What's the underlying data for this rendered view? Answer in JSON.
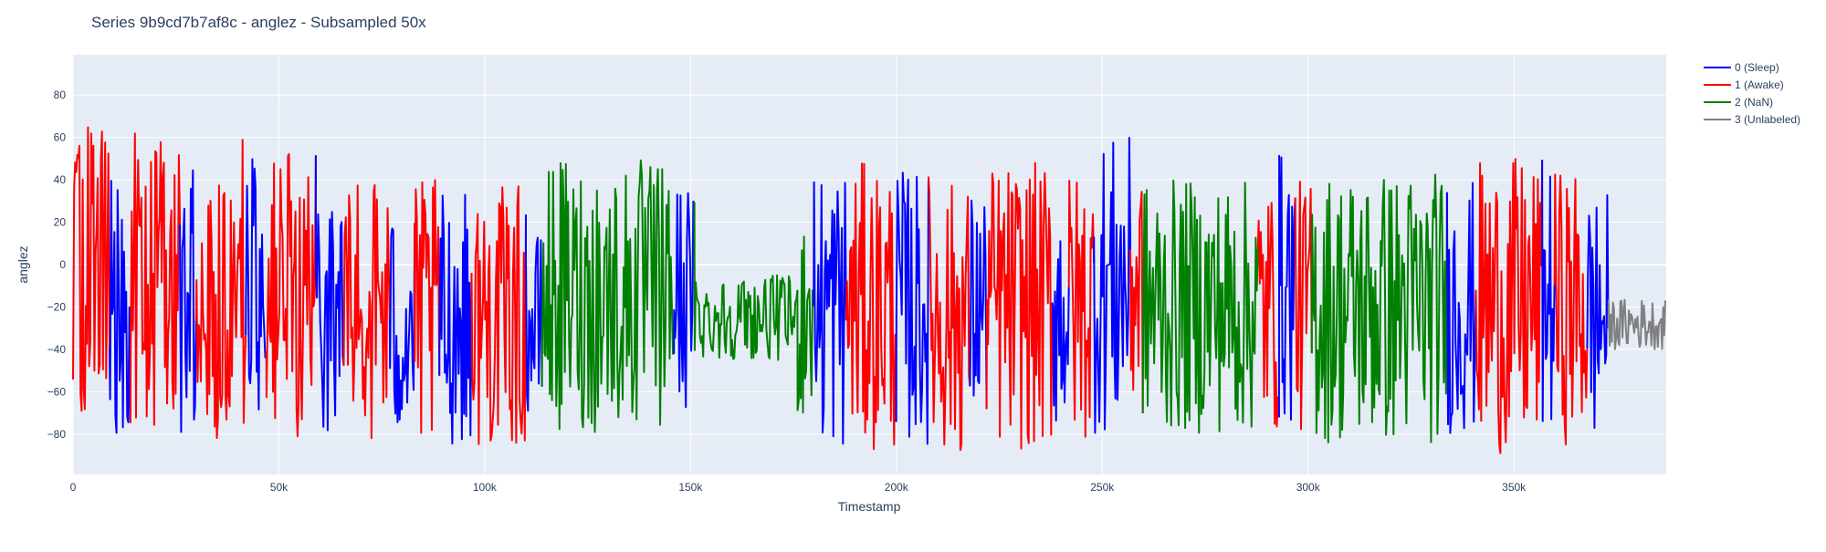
{
  "chart_data": {
    "type": "line",
    "title": "Series 9b9cd7b7af8c - anglez - Subsampled 50x",
    "xlabel": "Timestamp",
    "ylabel": "anglez",
    "xlim": [
      0,
      387000
    ],
    "ylim": [
      -99,
      99
    ],
    "x_ticks": [
      {
        "value": 0,
        "label": "0"
      },
      {
        "value": 50000,
        "label": "50k"
      },
      {
        "value": 100000,
        "label": "100k"
      },
      {
        "value": 150000,
        "label": "150k"
      },
      {
        "value": 200000,
        "label": "200k"
      },
      {
        "value": 250000,
        "label": "250k"
      },
      {
        "value": 300000,
        "label": "300k"
      },
      {
        "value": 350000,
        "label": "350k"
      }
    ],
    "y_ticks": [
      {
        "value": 80,
        "label": "80"
      },
      {
        "value": 60,
        "label": "60"
      },
      {
        "value": 40,
        "label": "40"
      },
      {
        "value": 20,
        "label": "20"
      },
      {
        "value": 0,
        "label": "0"
      },
      {
        "value": -20,
        "label": "−20"
      },
      {
        "value": -40,
        "label": "−40"
      },
      {
        "value": -60,
        "label": "−60"
      },
      {
        "value": -80,
        "label": "−80"
      }
    ],
    "grid": true,
    "legend_position": "top-right, outside plot",
    "series": [
      {
        "name": "0 (Sleep)",
        "color": "#0000ff"
      },
      {
        "name": "1 (Awake)",
        "color": "#ff0000"
      },
      {
        "name": "2 (NaN)",
        "color": "#008000"
      },
      {
        "name": "3 (Unlabeled)",
        "color": "#808080"
      }
    ],
    "segments": [
      {
        "series": 1,
        "x_start": 0,
        "x_end": 9000,
        "center": -5,
        "amplitude": 70
      },
      {
        "series": 0,
        "x_start": 9000,
        "x_end": 14000,
        "center": -15,
        "amplitude": 65
      },
      {
        "series": 1,
        "x_start": 14000,
        "x_end": 26000,
        "center": -10,
        "amplitude": 72
      },
      {
        "series": 0,
        "x_start": 26000,
        "x_end": 30000,
        "center": -12,
        "amplitude": 70
      },
      {
        "series": 1,
        "x_start": 30000,
        "x_end": 42000,
        "center": -12,
        "amplitude": 72
      },
      {
        "series": 0,
        "x_start": 42000,
        "x_end": 47000,
        "center": -10,
        "amplitude": 65
      },
      {
        "series": 1,
        "x_start": 47000,
        "x_end": 59000,
        "center": -15,
        "amplitude": 68
      },
      {
        "series": 0,
        "x_start": 59000,
        "x_end": 66000,
        "center": -20,
        "amplitude": 60
      },
      {
        "series": 1,
        "x_start": 66000,
        "x_end": 77000,
        "center": -20,
        "amplitude": 68
      },
      {
        "series": 0,
        "x_start": 77000,
        "x_end": 83000,
        "center": -30,
        "amplitude": 55
      },
      {
        "series": 1,
        "x_start": 83000,
        "x_end": 89000,
        "center": -25,
        "amplitude": 65
      },
      {
        "series": 0,
        "x_start": 89000,
        "x_end": 97000,
        "center": -25,
        "amplitude": 60
      },
      {
        "series": 1,
        "x_start": 97000,
        "x_end": 110000,
        "center": -25,
        "amplitude": 62
      },
      {
        "series": 0,
        "x_start": 110000,
        "x_end": 114000,
        "center": -30,
        "amplitude": 45
      },
      {
        "series": 2,
        "x_start": 114000,
        "x_end": 146000,
        "center": -15,
        "amplitude": 65
      },
      {
        "series": 0,
        "x_start": 146000,
        "x_end": 151000,
        "center": -15,
        "amplitude": 55
      },
      {
        "series": 2,
        "x_start": 151000,
        "x_end": 176000,
        "center": -25,
        "amplitude": 20
      },
      {
        "series": 2,
        "x_start": 176000,
        "x_end": 180000,
        "center": -20,
        "amplitude": 55
      },
      {
        "series": 0,
        "x_start": 180000,
        "x_end": 188000,
        "center": -20,
        "amplitude": 68
      },
      {
        "series": 1,
        "x_start": 188000,
        "x_end": 200000,
        "center": -20,
        "amplitude": 68
      },
      {
        "series": 0,
        "x_start": 200000,
        "x_end": 208000,
        "center": -20,
        "amplitude": 65
      },
      {
        "series": 1,
        "x_start": 208000,
        "x_end": 218000,
        "center": -25,
        "amplitude": 65
      },
      {
        "series": 0,
        "x_start": 218000,
        "x_end": 222000,
        "center": -20,
        "amplitude": 55
      },
      {
        "series": 1,
        "x_start": 222000,
        "x_end": 238000,
        "center": -20,
        "amplitude": 68
      },
      {
        "series": 0,
        "x_start": 238000,
        "x_end": 242000,
        "center": -20,
        "amplitude": 60
      },
      {
        "series": 1,
        "x_start": 242000,
        "x_end": 248000,
        "center": -20,
        "amplitude": 65
      },
      {
        "series": 0,
        "x_start": 248000,
        "x_end": 257000,
        "center": -10,
        "amplitude": 70
      },
      {
        "series": 1,
        "x_start": 257000,
        "x_end": 260000,
        "center": -10,
        "amplitude": 65
      },
      {
        "series": 2,
        "x_start": 260000,
        "x_end": 288000,
        "center": -20,
        "amplitude": 60
      },
      {
        "series": 1,
        "x_start": 288000,
        "x_end": 293000,
        "center": -20,
        "amplitude": 60
      },
      {
        "series": 0,
        "x_start": 293000,
        "x_end": 297000,
        "center": -10,
        "amplitude": 65
      },
      {
        "series": 1,
        "x_start": 297000,
        "x_end": 301000,
        "center": -20,
        "amplitude": 60
      },
      {
        "series": 2,
        "x_start": 301000,
        "x_end": 334000,
        "center": -20,
        "amplitude": 65
      },
      {
        "series": 0,
        "x_start": 334000,
        "x_end": 341000,
        "center": -20,
        "amplitude": 60
      },
      {
        "series": 1,
        "x_start": 341000,
        "x_end": 357000,
        "center": -20,
        "amplitude": 70
      },
      {
        "series": 0,
        "x_start": 357000,
        "x_end": 360000,
        "center": -15,
        "amplitude": 65
      },
      {
        "series": 1,
        "x_start": 360000,
        "x_end": 368000,
        "center": -20,
        "amplitude": 65
      },
      {
        "series": 0,
        "x_start": 368000,
        "x_end": 373000,
        "center": -25,
        "amplitude": 60
      },
      {
        "series": 3,
        "x_start": 373000,
        "x_end": 387000,
        "center": -28,
        "amplitude": 12
      }
    ]
  }
}
